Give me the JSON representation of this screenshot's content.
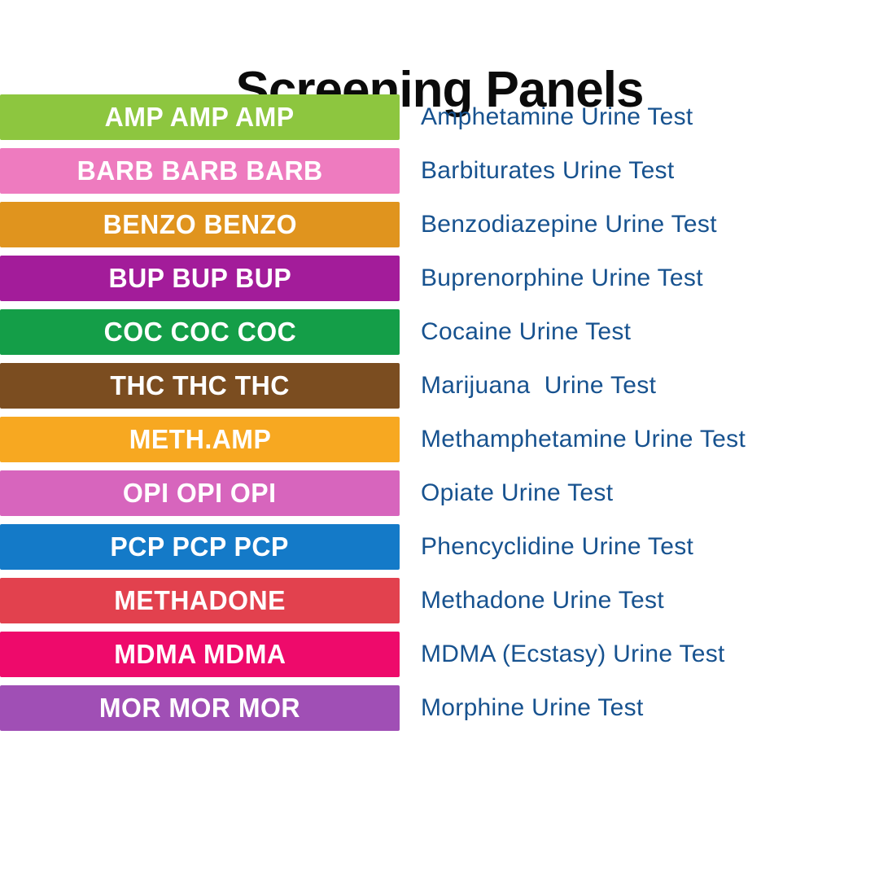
{
  "title": "Screening Panels",
  "test_name_color": "#17528F",
  "rows": [
    {
      "abbreviation": "AMP AMP AMP",
      "test_name": "Amphetamine Urine Test",
      "color": "#8DC63F"
    },
    {
      "abbreviation": "BARB BARB BARB",
      "test_name": "Barbiturates Urine Test",
      "color": "#EE7BBF"
    },
    {
      "abbreviation": "BENZO BENZO",
      "test_name": "Benzodiazepine Urine Test",
      "color": "#E0941E"
    },
    {
      "abbreviation": "BUP BUP BUP",
      "test_name": "Buprenorphine Urine Test",
      "color": "#A31C9A"
    },
    {
      "abbreviation": "COC COC COC",
      "test_name": "Cocaine Urine Test",
      "color": "#149E48"
    },
    {
      "abbreviation": "THC THC THC",
      "test_name": "Marijuana  Urine Test",
      "color": "#7B4D20"
    },
    {
      "abbreviation": "METH.AMP",
      "test_name": "Methamphetamine Urine Test",
      "color": "#F7A821",
      "dotted": true
    },
    {
      "abbreviation": "OPI OPI OPI",
      "test_name": "Opiate Urine Test",
      "color": "#D765BD",
      "dotted": true
    },
    {
      "abbreviation": "PCP PCP PCP",
      "test_name": "Phencyclidine Urine Test",
      "color": "#147AC8"
    },
    {
      "abbreviation": "METHADONE",
      "test_name": "Methadone Urine Test",
      "color": "#E2414E"
    },
    {
      "abbreviation": "MDMA MDMA",
      "test_name": "MDMA (Ecstasy) Urine Test",
      "color": "#EE0A6B"
    },
    {
      "abbreviation": "MOR MOR MOR",
      "test_name": "Morphine Urine Test",
      "color": "#A04FB5"
    }
  ]
}
